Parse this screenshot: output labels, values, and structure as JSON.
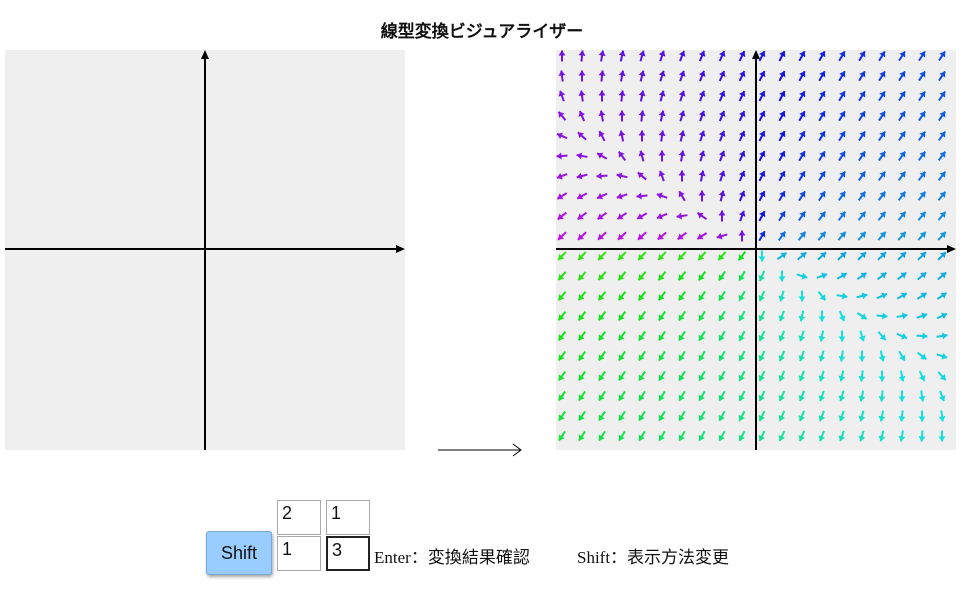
{
  "title": "線型変換ビジュアライザー",
  "matrix": {
    "a": "2",
    "b": "1",
    "c": "1",
    "d": "3"
  },
  "field_matrix": [
    [
      2,
      1
    ],
    [
      1,
      3
    ]
  ],
  "shift_label": "Shift",
  "help": {
    "enter": "Enter：変換結果確認",
    "shift": "Shift：表示方法変更"
  },
  "colors": {
    "panel_bg": "#efefef",
    "button_bg": "#99ccff",
    "axis": "#000000"
  }
}
